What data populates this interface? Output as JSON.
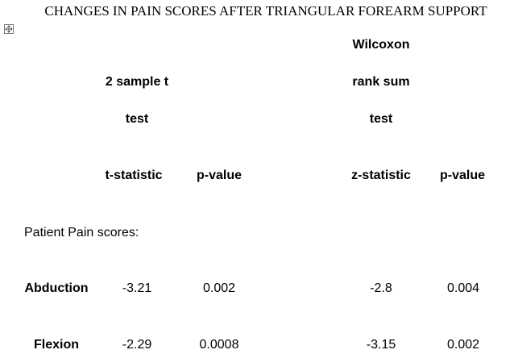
{
  "title": "CHANGES IN PAIN SCORES AFTER TRIANGULAR FOREARM SUPPORT",
  "table": {
    "groups": [
      {
        "lines": [
          "2 sample t",
          "test"
        ]
      },
      {
        "lines": [
          "Wilcoxon",
          "rank sum",
          "test"
        ]
      }
    ],
    "columns": [
      "t-statistic",
      "p-value",
      "z-statistic",
      "p-value"
    ],
    "section": "Patient Pain scores:",
    "rows": [
      [
        "Abduction",
        "-3.21",
        "0.002",
        "-2.8",
        "0.004"
      ],
      [
        "Flexion",
        "-2.29",
        "0.0008",
        "-3.15",
        "0.002"
      ]
    ]
  }
}
